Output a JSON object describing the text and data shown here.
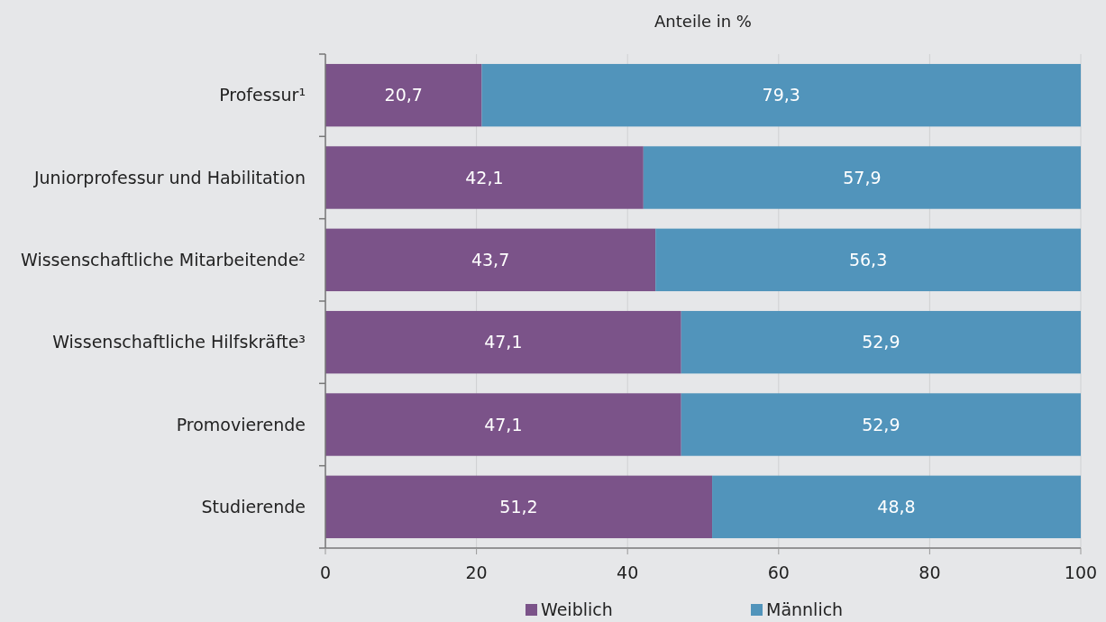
{
  "chart_data": {
    "type": "bar",
    "orientation": "horizontal",
    "stacked": true,
    "xlabel": "Anteile in %",
    "categories": [
      "Professur¹",
      "Juniorprofessur und Habilitation",
      "Wissenschaftliche Mitarbeitende²",
      "Wissenschaftliche Hilfskräfte³",
      "Promovierende",
      "Studierende"
    ],
    "series": [
      {
        "name": "Weiblich",
        "color": "#7b5389",
        "values": [
          20.7,
          42.1,
          43.7,
          47.1,
          47.1,
          51.2
        ],
        "value_labels": [
          "20,7",
          "42,1",
          "43,7",
          "47,1",
          "47,1",
          "51,2"
        ]
      },
      {
        "name": "Männlich",
        "color": "#5194bb",
        "values": [
          79.3,
          57.9,
          56.3,
          52.9,
          52.9,
          48.8
        ],
        "value_labels": [
          "79,3",
          "57,9",
          "56,3",
          "52,9",
          "52,9",
          "48,8"
        ]
      }
    ],
    "xlim": [
      0,
      100
    ],
    "xticks": [
      0,
      20,
      40,
      60,
      80,
      100
    ],
    "grid": "x",
    "legend": "bottom"
  }
}
